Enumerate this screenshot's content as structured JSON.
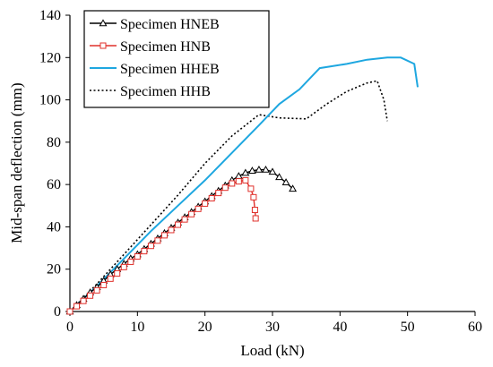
{
  "chart_data": {
    "type": "line",
    "xlabel": "Load (kN)",
    "ylabel": "Mid-span deflection (mm)",
    "xlim": [
      0,
      60
    ],
    "ylim": [
      0,
      140
    ],
    "xticks": [
      0,
      10,
      20,
      30,
      40,
      50,
      60
    ],
    "yticks": [
      0,
      20,
      40,
      60,
      80,
      100,
      120,
      140
    ],
    "grid": false,
    "legend_position": "top-left",
    "series": [
      {
        "name": "Specimen HNEB",
        "color": "#000000",
        "line_style": "solid",
        "marker": "triangle-open",
        "x": [
          0,
          1,
          2,
          3,
          4,
          5,
          6,
          7,
          8,
          9,
          10,
          11,
          12,
          13,
          14,
          15,
          16,
          17,
          18,
          19,
          20,
          21,
          22,
          23,
          24,
          25,
          26,
          27,
          28,
          29,
          30,
          31,
          32,
          33
        ],
        "y": [
          0,
          3,
          6,
          9,
          11.5,
          14.5,
          17.5,
          20,
          22.5,
          25,
          27,
          29.5,
          32,
          34.5,
          37,
          39.5,
          42,
          44.5,
          47,
          49.5,
          52,
          54.5,
          57,
          59.5,
          62,
          64,
          65.5,
          66.5,
          67,
          67,
          66,
          63.5,
          61,
          58
        ]
      },
      {
        "name": "Specimen HNB",
        "color": "#e0302b",
        "line_style": "solid",
        "marker": "square-open",
        "x": [
          0,
          1,
          2,
          3,
          4,
          5,
          6,
          7,
          8,
          9,
          10,
          11,
          12,
          13,
          14,
          15,
          16,
          17,
          18,
          19,
          20,
          21,
          22,
          23,
          24,
          25,
          26,
          26.8,
          27.2,
          27.4,
          27.5
        ],
        "y": [
          0,
          2.5,
          5,
          7.5,
          10,
          12.5,
          15.5,
          18,
          21,
          23.5,
          26,
          28.5,
          31,
          33.5,
          36,
          38.5,
          41,
          43.5,
          46,
          48.5,
          51,
          53.5,
          56,
          58.5,
          60.5,
          61.5,
          62,
          58,
          54,
          48,
          44
        ]
      },
      {
        "name": "Specimen HHEB",
        "color": "#1ea7e0",
        "line_style": "solid",
        "marker": "none",
        "x": [
          0,
          4,
          8,
          12,
          16,
          20,
          24,
          28,
          31,
          34,
          37,
          41,
          44,
          47,
          49,
          51,
          51.5
        ],
        "y": [
          0,
          12,
          25,
          38,
          50,
          62,
          75,
          88,
          98,
          105,
          115,
          117,
          119,
          120,
          120,
          117,
          106
        ]
      },
      {
        "name": "Specimen HHB",
        "color": "#000000",
        "line_style": "dotted",
        "marker": "none",
        "x": [
          0,
          4,
          8,
          12,
          16,
          20,
          24,
          28,
          31,
          35,
          38,
          41,
          44,
          45.5,
          46.5,
          47
        ],
        "y": [
          0,
          13,
          27,
          41,
          55,
          70,
          83,
          93,
          91.5,
          91,
          98,
          104,
          108,
          109,
          100,
          90
        ]
      }
    ]
  }
}
